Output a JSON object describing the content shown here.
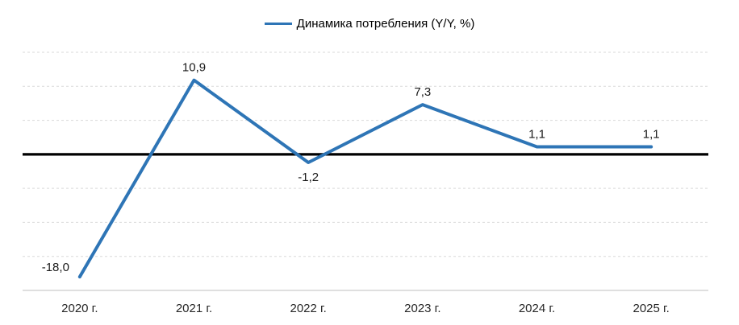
{
  "legend": {
    "label": "Динамика потребления (Y/Y, %)"
  },
  "chart_data": {
    "type": "line",
    "title": "",
    "xlabel": "",
    "ylabel": "",
    "categories": [
      "2020 г.",
      "2021 г.",
      "2022 г.",
      "2023 г.",
      "2024 г.",
      "2025 г."
    ],
    "series": [
      {
        "name": "Динамика потребления (Y/Y, %)",
        "values": [
          -18.0,
          10.9,
          -1.2,
          7.3,
          1.1,
          1.1
        ]
      }
    ],
    "value_labels": [
      "-18,0",
      "10,9",
      "-1,2",
      "7,3",
      "1,1",
      "1,1"
    ],
    "label_positions": [
      "above-left",
      "above",
      "below",
      "above",
      "above",
      "above"
    ],
    "ylim": [
      -20,
      15
    ],
    "grid_step": 5,
    "grid": "dashed-horizontal",
    "zero_line": true,
    "legend_position": "top-center",
    "colors": {
      "line": "#2E75B6",
      "zero_line": "#000000",
      "gridline": "#D9D9D9",
      "axis_line": "#BFBFBF",
      "label": "#1A1A1A",
      "tick_label": "#262626"
    }
  }
}
